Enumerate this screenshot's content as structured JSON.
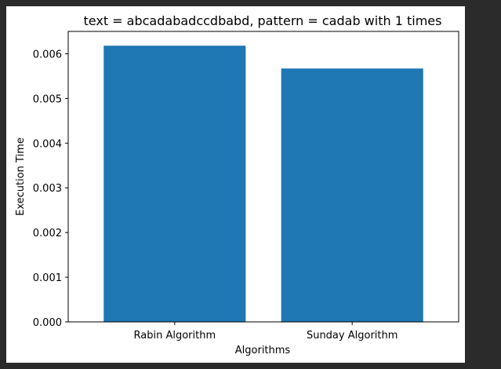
{
  "chart_data": {
    "type": "bar",
    "title": "text = abcadabadccdbabd, pattern = cadab  with 1 times",
    "xlabel": "Algorithms",
    "ylabel": "Execution Time",
    "categories": [
      "Rabin Algorithm",
      "Sunday Algorithm"
    ],
    "values": [
      0.00618,
      0.00567
    ],
    "ylim": [
      0,
      0.0065
    ],
    "yticks": [
      "0.000",
      "0.001",
      "0.002",
      "0.003",
      "0.004",
      "0.005",
      "0.006"
    ],
    "bar_color": "#1f77b4",
    "grid": false
  }
}
